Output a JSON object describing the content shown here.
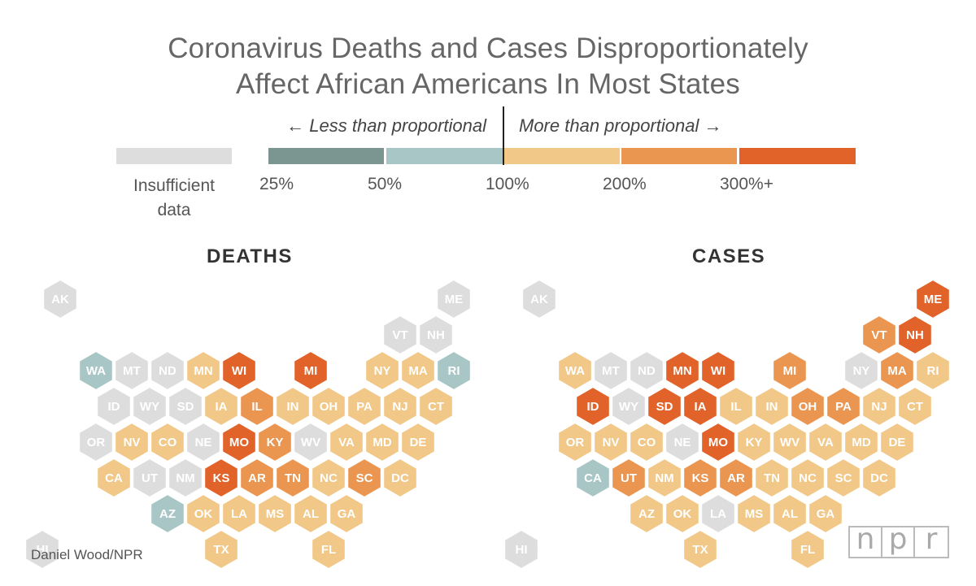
{
  "chart_data": {
    "type": "hexmap",
    "title": [
      "Coronavirus Deaths and Cases Disproportionately",
      "Affect African Americans In Most States"
    ],
    "legend": {
      "less_label": "← Less than proportional",
      "more_label": "More than proportional →",
      "insufficient_label": [
        "Insufficient",
        "data"
      ],
      "ticks": [
        "25%",
        "50%",
        "100%",
        "200%",
        "300%+"
      ],
      "categories": [
        {
          "key": "na",
          "label": "Insufficient data",
          "color": "#dddddd"
        },
        {
          "key": "c1",
          "label": "25%–50%",
          "color": "#7b9690"
        },
        {
          "key": "c2",
          "label": "50%–100%",
          "color": "#a8c6c6"
        },
        {
          "key": "c3",
          "label": "100%–200%",
          "color": "#f1c887"
        },
        {
          "key": "c4",
          "label": "200%–300%",
          "color": "#ea9650"
        },
        {
          "key": "c5",
          "label": "300%+",
          "color": "#e2632a"
        }
      ]
    },
    "maps": [
      {
        "title": "DEATHS",
        "states": [
          {
            "abbr": "AK",
            "cat": "na"
          },
          {
            "abbr": "ME",
            "cat": "na"
          },
          {
            "abbr": "VT",
            "cat": "na"
          },
          {
            "abbr": "NH",
            "cat": "na"
          },
          {
            "abbr": "WA",
            "cat": "c2"
          },
          {
            "abbr": "MT",
            "cat": "na"
          },
          {
            "abbr": "ND",
            "cat": "na"
          },
          {
            "abbr": "MN",
            "cat": "c3"
          },
          {
            "abbr": "WI",
            "cat": "c5"
          },
          {
            "abbr": "MI",
            "cat": "c5"
          },
          {
            "abbr": "NY",
            "cat": "c3"
          },
          {
            "abbr": "MA",
            "cat": "c3"
          },
          {
            "abbr": "RI",
            "cat": "c2"
          },
          {
            "abbr": "ID",
            "cat": "na"
          },
          {
            "abbr": "WY",
            "cat": "na"
          },
          {
            "abbr": "SD",
            "cat": "na"
          },
          {
            "abbr": "IA",
            "cat": "c3"
          },
          {
            "abbr": "IL",
            "cat": "c4"
          },
          {
            "abbr": "IN",
            "cat": "c3"
          },
          {
            "abbr": "OH",
            "cat": "c3"
          },
          {
            "abbr": "PA",
            "cat": "c3"
          },
          {
            "abbr": "NJ",
            "cat": "c3"
          },
          {
            "abbr": "CT",
            "cat": "c3"
          },
          {
            "abbr": "OR",
            "cat": "na"
          },
          {
            "abbr": "NV",
            "cat": "c3"
          },
          {
            "abbr": "CO",
            "cat": "c3"
          },
          {
            "abbr": "NE",
            "cat": "na"
          },
          {
            "abbr": "MO",
            "cat": "c5"
          },
          {
            "abbr": "KY",
            "cat": "c4"
          },
          {
            "abbr": "WV",
            "cat": "na"
          },
          {
            "abbr": "VA",
            "cat": "c3"
          },
          {
            "abbr": "MD",
            "cat": "c3"
          },
          {
            "abbr": "DE",
            "cat": "c3"
          },
          {
            "abbr": "CA",
            "cat": "c3"
          },
          {
            "abbr": "UT",
            "cat": "na"
          },
          {
            "abbr": "NM",
            "cat": "na"
          },
          {
            "abbr": "KS",
            "cat": "c5"
          },
          {
            "abbr": "AR",
            "cat": "c4"
          },
          {
            "abbr": "TN",
            "cat": "c4"
          },
          {
            "abbr": "NC",
            "cat": "c3"
          },
          {
            "abbr": "SC",
            "cat": "c4"
          },
          {
            "abbr": "DC",
            "cat": "c3"
          },
          {
            "abbr": "AZ",
            "cat": "c2"
          },
          {
            "abbr": "OK",
            "cat": "c3"
          },
          {
            "abbr": "LA",
            "cat": "c3"
          },
          {
            "abbr": "MS",
            "cat": "c3"
          },
          {
            "abbr": "AL",
            "cat": "c3"
          },
          {
            "abbr": "GA",
            "cat": "c3"
          },
          {
            "abbr": "HI",
            "cat": "na"
          },
          {
            "abbr": "TX",
            "cat": "c3"
          },
          {
            "abbr": "FL",
            "cat": "c3"
          }
        ]
      },
      {
        "title": "CASES",
        "states": [
          {
            "abbr": "AK",
            "cat": "na"
          },
          {
            "abbr": "ME",
            "cat": "c5"
          },
          {
            "abbr": "VT",
            "cat": "c4"
          },
          {
            "abbr": "NH",
            "cat": "c5"
          },
          {
            "abbr": "WA",
            "cat": "c3"
          },
          {
            "abbr": "MT",
            "cat": "na"
          },
          {
            "abbr": "ND",
            "cat": "na"
          },
          {
            "abbr": "MN",
            "cat": "c5"
          },
          {
            "abbr": "WI",
            "cat": "c5"
          },
          {
            "abbr": "MI",
            "cat": "c4"
          },
          {
            "abbr": "NY",
            "cat": "na"
          },
          {
            "abbr": "MA",
            "cat": "c4"
          },
          {
            "abbr": "RI",
            "cat": "c3"
          },
          {
            "abbr": "ID",
            "cat": "c5"
          },
          {
            "abbr": "WY",
            "cat": "na"
          },
          {
            "abbr": "SD",
            "cat": "c5"
          },
          {
            "abbr": "IA",
            "cat": "c5"
          },
          {
            "abbr": "IL",
            "cat": "c3"
          },
          {
            "abbr": "IN",
            "cat": "c3"
          },
          {
            "abbr": "OH",
            "cat": "c4"
          },
          {
            "abbr": "PA",
            "cat": "c4"
          },
          {
            "abbr": "NJ",
            "cat": "c3"
          },
          {
            "abbr": "CT",
            "cat": "c3"
          },
          {
            "abbr": "OR",
            "cat": "c3"
          },
          {
            "abbr": "NV",
            "cat": "c3"
          },
          {
            "abbr": "CO",
            "cat": "c3"
          },
          {
            "abbr": "NE",
            "cat": "na"
          },
          {
            "abbr": "MO",
            "cat": "c5"
          },
          {
            "abbr": "KY",
            "cat": "c3"
          },
          {
            "abbr": "WV",
            "cat": "c3"
          },
          {
            "abbr": "VA",
            "cat": "c3"
          },
          {
            "abbr": "MD",
            "cat": "c3"
          },
          {
            "abbr": "DE",
            "cat": "c3"
          },
          {
            "abbr": "CA",
            "cat": "c2"
          },
          {
            "abbr": "UT",
            "cat": "c4"
          },
          {
            "abbr": "NM",
            "cat": "c3"
          },
          {
            "abbr": "KS",
            "cat": "c4"
          },
          {
            "abbr": "AR",
            "cat": "c4"
          },
          {
            "abbr": "TN",
            "cat": "c3"
          },
          {
            "abbr": "NC",
            "cat": "c3"
          },
          {
            "abbr": "SC",
            "cat": "c3"
          },
          {
            "abbr": "DC",
            "cat": "c3"
          },
          {
            "abbr": "AZ",
            "cat": "c3"
          },
          {
            "abbr": "OK",
            "cat": "c3"
          },
          {
            "abbr": "LA",
            "cat": "na"
          },
          {
            "abbr": "MS",
            "cat": "c3"
          },
          {
            "abbr": "AL",
            "cat": "c3"
          },
          {
            "abbr": "GA",
            "cat": "c3"
          },
          {
            "abbr": "HI",
            "cat": "na"
          },
          {
            "abbr": "TX",
            "cat": "c3"
          },
          {
            "abbr": "FL",
            "cat": "c3"
          }
        ]
      }
    ]
  },
  "credit": "Daniel Wood/NPR",
  "logo": [
    "n",
    "p",
    "r"
  ]
}
